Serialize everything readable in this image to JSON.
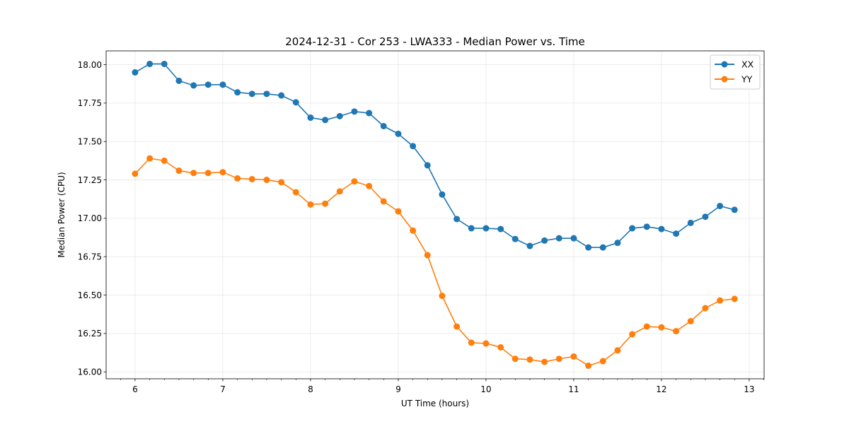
{
  "chart_data": {
    "type": "line",
    "title": "2024-12-31 - Cor 253 - LWA333 - Median Power vs. Time",
    "xlabel": "UT Time (hours)",
    "ylabel": "Median Power (CPU)",
    "xlim": [
      5.67,
      13.17
    ],
    "ylim": [
      15.955,
      18.09
    ],
    "xticks": [
      6,
      7,
      8,
      9,
      10,
      11,
      12,
      13
    ],
    "xtick_labels": [
      "6",
      "7",
      "8",
      "9",
      "10",
      "11",
      "12",
      "13"
    ],
    "yticks": [
      16.0,
      16.25,
      16.5,
      16.75,
      17.0,
      17.25,
      17.5,
      17.75,
      18.0
    ],
    "ytick_labels": [
      "16.00",
      "16.25",
      "16.50",
      "16.75",
      "17.00",
      "17.25",
      "17.50",
      "17.75",
      "18.00"
    ],
    "grid": true,
    "legend_position": "top-right",
    "x": [
      6.0,
      6.167,
      6.333,
      6.5,
      6.667,
      6.833,
      7.0,
      7.167,
      7.333,
      7.5,
      7.667,
      7.833,
      8.0,
      8.167,
      8.333,
      8.5,
      8.667,
      8.833,
      9.0,
      9.167,
      9.333,
      9.5,
      9.667,
      9.833,
      10.0,
      10.167,
      10.333,
      10.5,
      10.667,
      10.833,
      11.0,
      11.167,
      11.333,
      11.5,
      11.667,
      11.833,
      12.0,
      12.167,
      12.333,
      12.5,
      12.667,
      12.833
    ],
    "series": [
      {
        "name": "XX",
        "color": "#1f77b4",
        "values": [
          17.95,
          18.005,
          18.005,
          17.895,
          17.865,
          17.87,
          17.87,
          17.82,
          17.81,
          17.81,
          17.8,
          17.755,
          17.655,
          17.64,
          17.665,
          17.695,
          17.685,
          17.6,
          17.55,
          17.47,
          17.345,
          17.155,
          16.995,
          16.935,
          16.935,
          16.93,
          16.865,
          16.82,
          16.855,
          16.87,
          16.87,
          16.81,
          16.81,
          16.84,
          16.935,
          16.945,
          16.93,
          16.9,
          16.97,
          17.01,
          17.08,
          17.055
        ]
      },
      {
        "name": "YY",
        "color": "#ff7f0e",
        "values": [
          17.29,
          17.39,
          17.375,
          17.31,
          17.295,
          17.295,
          17.3,
          17.26,
          17.255,
          17.25,
          17.235,
          17.17,
          17.09,
          17.095,
          17.175,
          17.24,
          17.21,
          17.11,
          17.045,
          16.92,
          16.76,
          16.495,
          16.295,
          16.19,
          16.185,
          16.16,
          16.085,
          16.08,
          16.065,
          16.085,
          16.1,
          16.04,
          16.07,
          16.14,
          16.245,
          16.295,
          16.29,
          16.265,
          16.33,
          16.415,
          16.465,
          16.475
        ]
      }
    ]
  }
}
